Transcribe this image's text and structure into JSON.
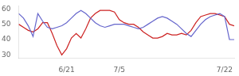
{
  "chart_data": {
    "type": "line",
    "x": [
      0,
      1,
      2,
      3,
      4,
      5,
      6,
      7,
      8,
      9,
      10,
      11,
      12,
      13,
      14,
      15,
      16,
      17,
      18,
      19,
      20,
      21,
      22,
      23,
      24,
      25,
      26,
      27,
      28,
      29,
      30,
      31,
      32,
      33,
      34,
      35,
      36,
      37,
      38,
      39,
      40,
      41,
      42,
      43,
      44,
      45
    ],
    "series": [
      {
        "color": "#6666cc",
        "values": [
          57,
          54,
          49,
          42,
          57,
          52,
          48,
          47,
          48,
          49,
          51,
          54,
          57,
          59,
          57,
          54,
          51,
          49,
          48,
          49,
          50,
          50,
          50,
          49,
          48,
          47,
          48,
          50,
          52,
          54,
          55,
          54,
          52,
          50,
          47,
          44,
          42,
          46,
          50,
          53,
          55,
          56,
          57,
          55,
          40,
          40
        ]
      },
      {
        "color": "#cc2222",
        "values": [
          50,
          48,
          46,
          45,
          47,
          51,
          51,
          44,
          36,
          30,
          34,
          41,
          44,
          41,
          47,
          54,
          57,
          59,
          59,
          59,
          58,
          53,
          51,
          50,
          50,
          48,
          45,
          43,
          41,
          41,
          42,
          44,
          43,
          43,
          44,
          43,
          46,
          51,
          55,
          56,
          57,
          57,
          56,
          55,
          50,
          49
        ]
      }
    ],
    "xlim": [
      0,
      45
    ],
    "xticks": [
      {
        "value": 10,
        "label": "6/21"
      },
      {
        "value": 21,
        "label": "7/5"
      },
      {
        "value": 32,
        "label": null
      },
      {
        "value": 43,
        "label": "7/22"
      }
    ],
    "ylim": [
      28,
      62
    ],
    "yticks": [
      30,
      40,
      50,
      60
    ],
    "grid": false
  }
}
